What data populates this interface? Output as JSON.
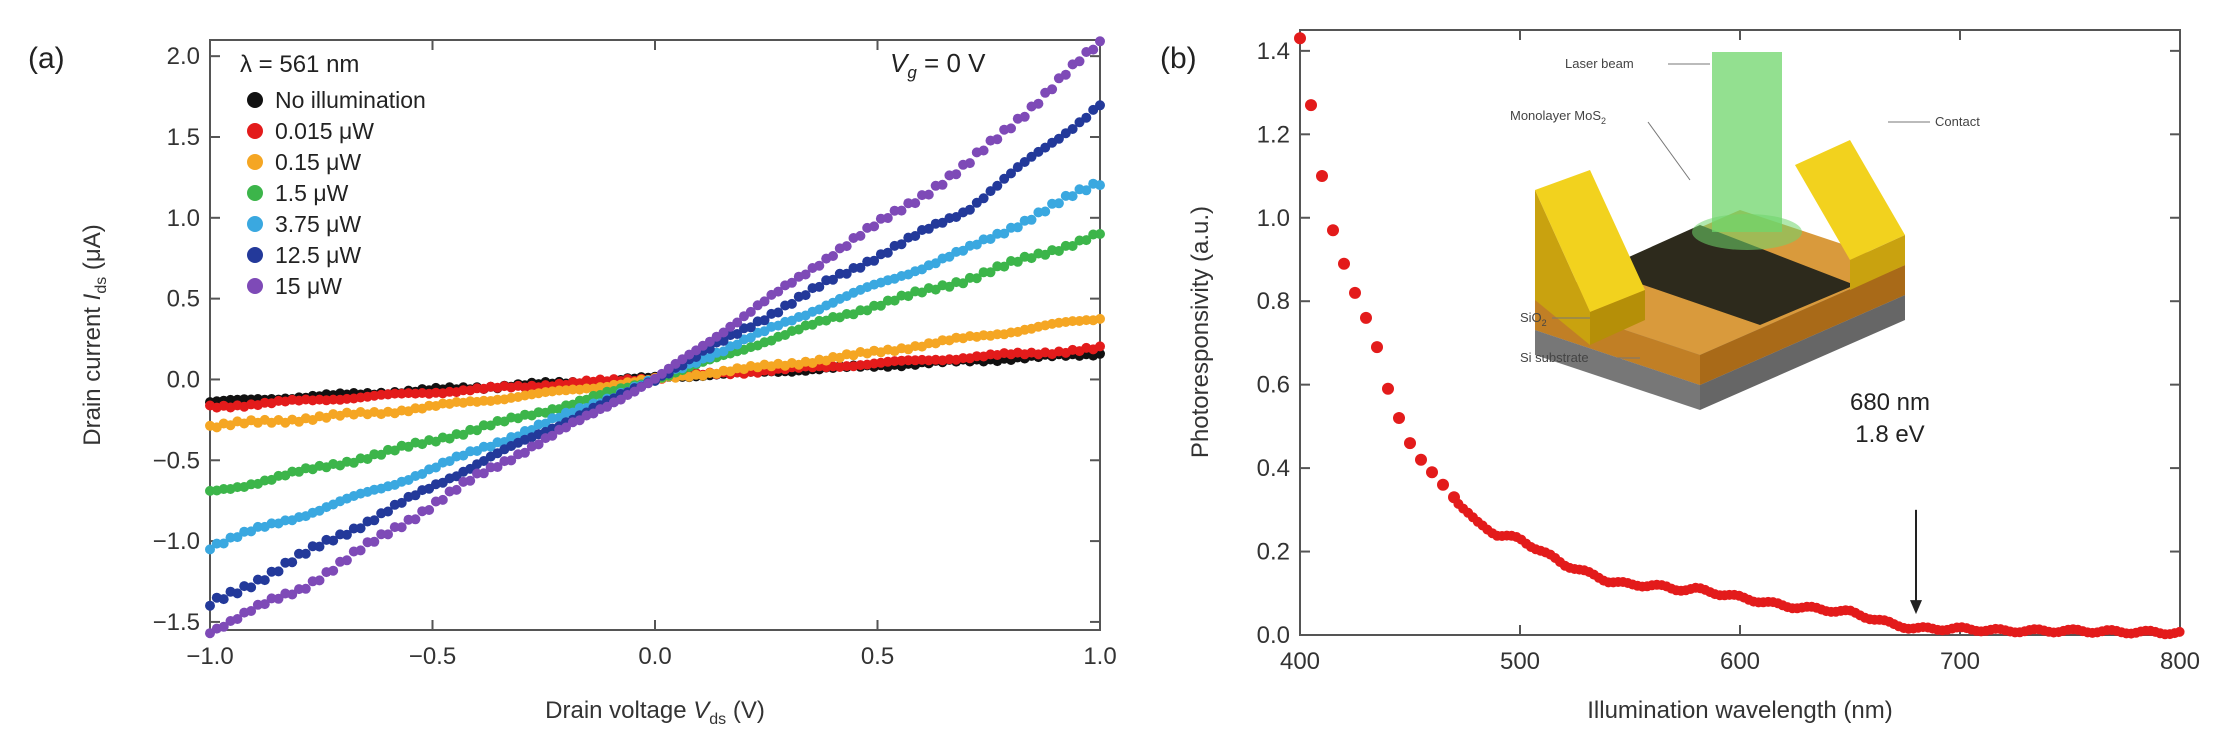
{
  "chart_data": [
    {
      "panel_label": "(a)",
      "type": "line",
      "xlabel": "Drain voltage V_ds (V)",
      "xlabel_main": "Drain voltage ",
      "xlabel_var": "V",
      "xlabel_sub": "ds",
      "xlabel_unit": " (V)",
      "ylabel": "Drain current I_ds (μA)",
      "ylabel_main": "Drain current ",
      "ylabel_var": "I",
      "ylabel_sub": "ds",
      "ylabel_unit": " (μA)",
      "xlim": [
        -1.0,
        1.0
      ],
      "ylim": [
        -1.55,
        2.1
      ],
      "x_ticks": [
        -1.0,
        -0.5,
        0.0,
        0.5,
        1.0
      ],
      "x_tick_labels": [
        "−1.0",
        "−0.5",
        "0.0",
        "0.5",
        "1.0"
      ],
      "y_ticks": [
        -1.5,
        -1.0,
        -0.5,
        0.0,
        0.5,
        1.0,
        1.5,
        2.0
      ],
      "y_tick_labels": [
        "−1.5",
        "−1.0",
        "−0.5",
        "0.0",
        "0.5",
        "1.0",
        "1.5",
        "2.0"
      ],
      "annotations": {
        "wavelength": "λ = 561 nm",
        "gate_var": "V",
        "gate_sub": "g",
        "gate_value": " = 0 V"
      },
      "series": [
        {
          "name": "No illumination",
          "color": "#111111",
          "x": [
            -1.0,
            1.0
          ],
          "y": [
            -0.14,
            0.16
          ]
        },
        {
          "name": "0.015 μW",
          "color": "#e31b1b",
          "x": [
            -1.0,
            1.0
          ],
          "y": [
            -0.17,
            0.19
          ]
        },
        {
          "name": "0.15 μW",
          "color": "#f5a623",
          "x": [
            -1.0,
            -0.6,
            -0.2,
            0.0,
            0.4,
            1.0
          ],
          "y": [
            -0.29,
            -0.2,
            -0.07,
            0.0,
            0.13,
            0.38
          ]
        },
        {
          "name": "1.5 μW",
          "color": "#3cb54a",
          "x": [
            -1.0,
            -0.6,
            -0.2,
            0.0,
            0.4,
            0.7,
            1.0
          ],
          "y": [
            -0.7,
            -0.45,
            -0.16,
            0.0,
            0.38,
            0.62,
            0.9
          ]
        },
        {
          "name": "3.75 μW",
          "color": "#3aa8e0",
          "x": [
            -1.0,
            -0.6,
            -0.2,
            0.0,
            0.4,
            0.7,
            1.0
          ],
          "y": [
            -1.03,
            -0.66,
            -0.22,
            0.0,
            0.48,
            0.8,
            1.22
          ]
        },
        {
          "name": "12.5 μW",
          "color": "#23399a",
          "x": [
            -1.0,
            -0.8,
            -0.4,
            0.0,
            0.4,
            0.7,
            1.0
          ],
          "y": [
            -1.4,
            -1.1,
            -0.52,
            0.0,
            0.62,
            1.05,
            1.7
          ]
        },
        {
          "name": "15 μW",
          "color": "#7e4ab7",
          "x": [
            -1.0,
            -0.8,
            -0.4,
            0.0,
            0.4,
            0.7,
            1.0
          ],
          "y": [
            -1.55,
            -1.3,
            -0.6,
            0.0,
            0.78,
            1.32,
            2.08
          ]
        }
      ]
    },
    {
      "panel_label": "(b)",
      "type": "scatter",
      "xlabel": "Illumination wavelength (nm)",
      "ylabel": "Photoresponsivity (a.u.)",
      "xlim": [
        400,
        800
      ],
      "ylim": [
        0.0,
        1.45
      ],
      "x_ticks": [
        400,
        500,
        600,
        700,
        800
      ],
      "x_tick_labels": [
        "400",
        "500",
        "600",
        "700",
        "800"
      ],
      "y_ticks": [
        0.0,
        0.2,
        0.4,
        0.6,
        0.8,
        1.0,
        1.2,
        1.4
      ],
      "y_tick_labels": [
        "0.0",
        "0.2",
        "0.4",
        "0.6",
        "0.8",
        "1.0",
        "1.2",
        "1.4"
      ],
      "series": [
        {
          "name": "Photoresponsivity",
          "color": "#e31b1b",
          "x": [
            400,
            405,
            410,
            415,
            420,
            425,
            430,
            435,
            440,
            445,
            450,
            455,
            460,
            465,
            470,
            480,
            490,
            500,
            510,
            520,
            530,
            540,
            550,
            560,
            570,
            580,
            590,
            600,
            610,
            620,
            630,
            640,
            650,
            660,
            670,
            680,
            700,
            720,
            750,
            800
          ],
          "y": [
            1.43,
            1.27,
            1.1,
            0.97,
            0.89,
            0.82,
            0.76,
            0.69,
            0.59,
            0.52,
            0.46,
            0.42,
            0.39,
            0.36,
            0.33,
            0.27,
            0.24,
            0.23,
            0.2,
            0.17,
            0.15,
            0.13,
            0.12,
            0.12,
            0.11,
            0.11,
            0.1,
            0.09,
            0.08,
            0.07,
            0.065,
            0.06,
            0.055,
            0.04,
            0.025,
            0.015,
            0.015,
            0.01,
            0.01,
            0.005
          ]
        }
      ],
      "annotations": {
        "arrow_wavelength": "680 nm",
        "arrow_energy": "1.8 eV",
        "arrow_x": 680,
        "arrow_y_top": 0.3,
        "arrow_y_bottom": 0.05
      },
      "inset": {
        "laser_label": "Laser beam",
        "monolayer_label_main": "Monolayer MoS",
        "monolayer_label_sub": "2",
        "contact_label": "Contact",
        "oxide_label_main": "SiO",
        "oxide_label_sub": "2",
        "substrate_label": "Si substrate",
        "colors": {
          "contact": "#f2d21e",
          "contact_side": "#c9a20f",
          "laser": "#6fd56b",
          "oxide": "#d99a3c",
          "substrate": "#8e8e8e"
        }
      }
    }
  ]
}
